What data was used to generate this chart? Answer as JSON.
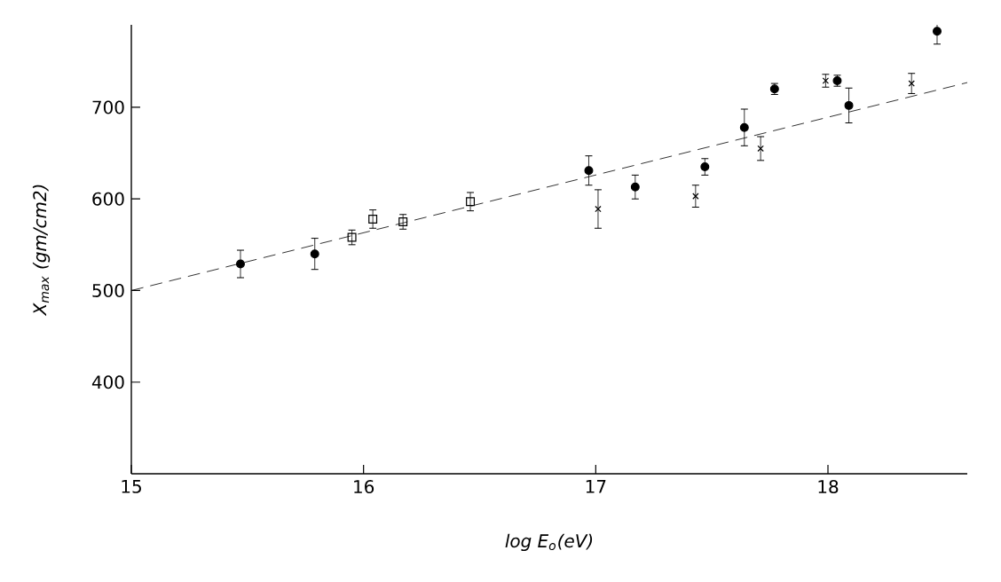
{
  "chart_data": {
    "type": "scatter",
    "xlabel": "log E$_{o}$(eV)",
    "ylabel": "X$_{max}$ (gm/cm2)",
    "xlim": [
      15,
      18.6
    ],
    "ylim": [
      300,
      790
    ],
    "xticks": [
      15,
      16,
      17,
      18
    ],
    "yticks": [
      400,
      500,
      600,
      700
    ],
    "grid": false,
    "series": [
      {
        "color": "#000000",
        "marker": "circle",
        "x": [
          15.47,
          15.79
        ],
        "values": [
          529,
          540
        ],
        "errors": [
          15,
          17
        ]
      },
      {
        "color": "#000000",
        "marker": "square",
        "x": [
          15.95,
          16.04,
          16.17,
          16.46
        ],
        "values": [
          558,
          578,
          575,
          597
        ],
        "errors": [
          8,
          10,
          8,
          10
        ]
      },
      {
        "color": "#000000",
        "marker": "circle",
        "x": [
          16.97,
          17.17,
          17.47,
          17.77,
          18.04,
          18.47
        ],
        "values": [
          631,
          613,
          635,
          720,
          729,
          783
        ],
        "errors": [
          16,
          13,
          9,
          6,
          6,
          14
        ]
      },
      {
        "color": "#000000",
        "marker": "circle",
        "x": [
          17.64,
          18.09
        ],
        "values": [
          678,
          702
        ],
        "errors": [
          20,
          19
        ]
      },
      {
        "color": "#000000",
        "marker": "cross",
        "x": [
          17.01,
          17.43,
          17.71,
          17.99,
          18.36
        ],
        "values": [
          589,
          603,
          655,
          729,
          726
        ],
        "errors": [
          21,
          12,
          13,
          7,
          11
        ]
      },
      {
        "type": "line",
        "color": "#000000",
        "marker": "none",
        "line_style": "dashed",
        "x": [
          15,
          18.6
        ],
        "values": [
          500,
          727
        ]
      }
    ]
  }
}
